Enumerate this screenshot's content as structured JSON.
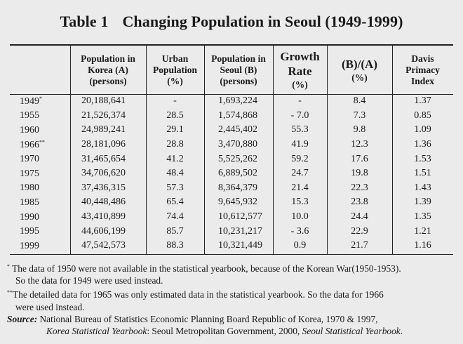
{
  "table": {
    "number": "Table 1",
    "title": "Changing Population in Seoul (1949-1999)",
    "headers": {
      "korea_pop": [
        "Population in",
        "Korea (A)",
        "(persons)"
      ],
      "urban": [
        "Urban",
        "Population",
        "(%)"
      ],
      "seoul_pop": [
        "Population in",
        "Seoul (B)",
        "(persons)"
      ],
      "growth": [
        "Growth",
        "Rate",
        "(%)"
      ],
      "ratio": [
        "(B)/(A)",
        "(%)"
      ],
      "davis": [
        "Davis",
        "Primacy",
        "Index"
      ]
    },
    "rows": [
      {
        "year": "1949",
        "mark": "*",
        "korea": "20,188,641",
        "urban": "-",
        "seoul": "1,693,224",
        "growth": "-",
        "ratio": "8.4",
        "davis": "1.37"
      },
      {
        "year": "1955",
        "mark": "",
        "korea": "21,526,374",
        "urban": "28.5",
        "seoul": "1,574,868",
        "growth": "- 7.0",
        "ratio": "7.3",
        "davis": "0.85"
      },
      {
        "year": "1960",
        "mark": "",
        "korea": "24,989,241",
        "urban": "29.1",
        "seoul": "2,445,402",
        "growth": "55.3",
        "ratio": "9.8",
        "davis": "1.09"
      },
      {
        "year": "1966",
        "mark": "**",
        "korea": "28,181,096",
        "urban": "28.8",
        "seoul": "3,470,880",
        "growth": "41.9",
        "ratio": "12.3",
        "davis": "1.36"
      },
      {
        "year": "1970",
        "mark": "",
        "korea": "31,465,654",
        "urban": "41.2",
        "seoul": "5,525,262",
        "growth": "59.2",
        "ratio": "17.6",
        "davis": "1.53"
      },
      {
        "year": "1975",
        "mark": "",
        "korea": "34,706,620",
        "urban": "48.4",
        "seoul": "6,889,502",
        "growth": "24.7",
        "ratio": "19.8",
        "davis": "1.51"
      },
      {
        "year": "1980",
        "mark": "",
        "korea": "37,436,315",
        "urban": "57.3",
        "seoul": "8,364,379",
        "growth": "21.4",
        "ratio": "22.3",
        "davis": "1.43"
      },
      {
        "year": "1985",
        "mark": "",
        "korea": "40,448,486",
        "urban": "65.4",
        "seoul": "9,645,932",
        "growth": "15.3",
        "ratio": "23.8",
        "davis": "1.39"
      },
      {
        "year": "1990",
        "mark": "",
        "korea": "43,410,899",
        "urban": "74.4",
        "seoul": "10,612,577",
        "growth": "10.0",
        "ratio": "24.4",
        "davis": "1.35"
      },
      {
        "year": "1995",
        "mark": "",
        "korea": "44,606,199",
        "urban": "85.7",
        "seoul": "10,231,217",
        "growth": "- 3.6",
        "ratio": "22.9",
        "davis": "1.21"
      },
      {
        "year": "1999",
        "mark": "",
        "korea": "47,542,573",
        "urban": "88.3",
        "seoul": "10,321,449",
        "growth": "0.9",
        "ratio": "21.7",
        "davis": "1.16"
      }
    ]
  },
  "notes": {
    "note1_mark": "*",
    "note1_line1": "The data of 1950 were not available in the statistical yearbook, because of the Korean War(1950-1953).",
    "note1_line2": "So the data for 1949 were used instead.",
    "note2_mark": "**",
    "note2_line1": "The detailed data for 1965 was only estimated data in the statistical yearbook. So the data for 1966",
    "note2_line2": "were used instead.",
    "source_label": "Source:",
    "source_line1": "National Bureau of Statistics Economic Planning Board Republic of Korea, 1970 & 1997,",
    "source_line2_italic1": "Korea Statistical Yearbook",
    "source_line2_mid": ": Seoul Metropolitan Government, 2000, ",
    "source_line2_italic2": "Seoul Statistical Yearbook",
    "source_line2_end": "."
  }
}
